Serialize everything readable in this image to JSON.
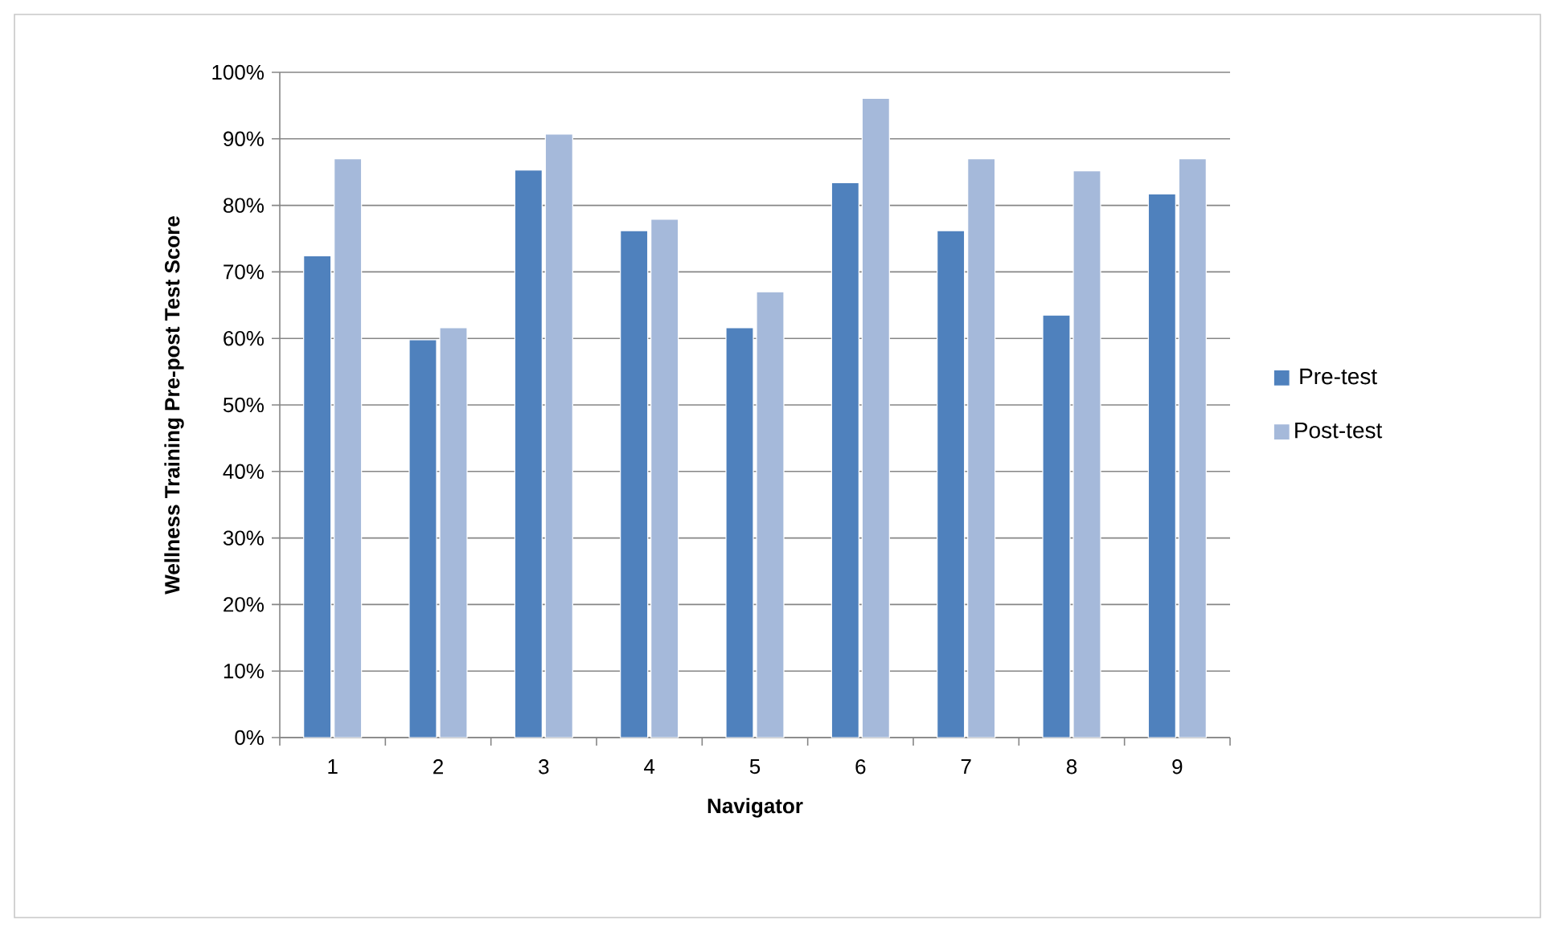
{
  "chart_data": {
    "type": "bar",
    "xlabel": "Navigator",
    "ylabel": "Wellness Training Pre-post Test Score",
    "categories": [
      "1",
      "2",
      "3",
      "4",
      "5",
      "6",
      "7",
      "8",
      "9"
    ],
    "series": [
      {
        "name": "Pre-test",
        "color": "#4f81bd",
        "values": [
          72.4,
          59.8,
          85.3,
          76.2,
          61.6,
          83.4,
          76.2,
          63.5,
          81.7
        ]
      },
      {
        "name": "Post-test",
        "color": "#a5b9da",
        "values": [
          87.0,
          61.6,
          90.7,
          77.9,
          67.0,
          96.1,
          87.0,
          85.2,
          87.0
        ]
      }
    ],
    "ylim": [
      0,
      100
    ],
    "yticks": [
      {
        "value": 0,
        "label": "0%"
      },
      {
        "value": 10,
        "label": "10%"
      },
      {
        "value": 20,
        "label": "20%"
      },
      {
        "value": 30,
        "label": "30%"
      },
      {
        "value": 40,
        "label": "40%"
      },
      {
        "value": 50,
        "label": "50%"
      },
      {
        "value": 60,
        "label": "60%"
      },
      {
        "value": 70,
        "label": "70%"
      },
      {
        "value": 80,
        "label": "80%"
      },
      {
        "value": 90,
        "label": "90%"
      },
      {
        "value": 100,
        "label": "100%"
      }
    ],
    "grid": "y",
    "legend": "right"
  }
}
